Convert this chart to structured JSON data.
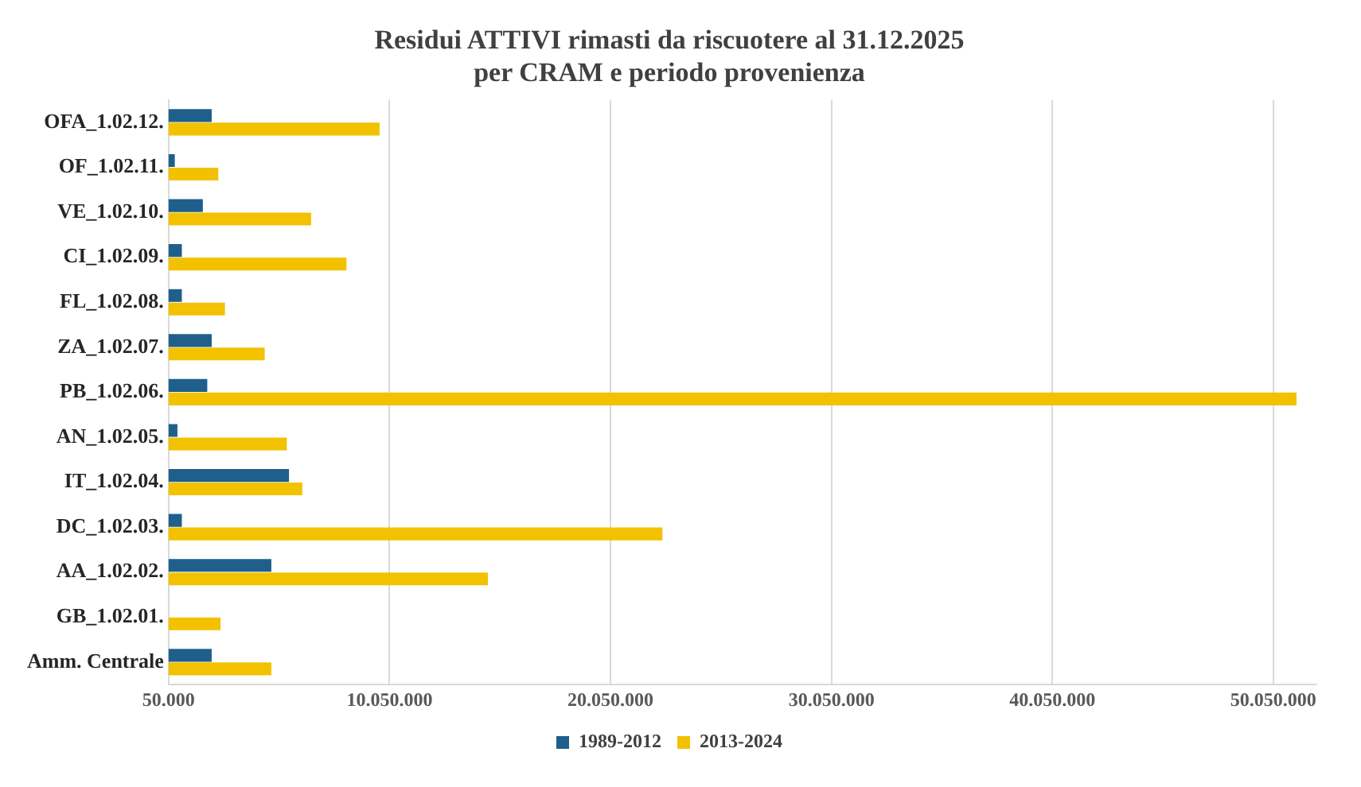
{
  "chart_data": {
    "type": "bar",
    "orientation": "horizontal",
    "title": "Residui ATTIVI rimasti da riscuotere al 31.12.2025\nper CRAM e periodo provenienza",
    "categories": [
      "OFA_1.02.12.",
      "OF_1.02.11.",
      "VE_1.02.10.",
      "CI_1.02.09.",
      "FL_1.02.08.",
      "ZA_1.02.07.",
      "PB_1.02.06.",
      "AN_1.02.05.",
      "IT_1.02.04.",
      "DC_1.02.03.",
      "AA_1.02.02.",
      "GB_1.02.01.",
      "Amm. Centrale"
    ],
    "series": [
      {
        "name": "1989-2012",
        "color": "#1f5f8b",
        "values": [
          2000000,
          330000,
          1600000,
          650000,
          650000,
          2000000,
          1800000,
          450000,
          5500000,
          650000,
          4700000,
          null,
          2000000
        ]
      },
      {
        "name": "2013-2024",
        "color": "#f2c200",
        "values": [
          9600000,
          2300000,
          6500000,
          8100000,
          2600000,
          4400000,
          51100000,
          5400000,
          6100000,
          22400000,
          14500000,
          2400000,
          4700000
        ]
      }
    ],
    "xlim": [
      50000,
      52000000
    ],
    "xticks": [
      {
        "value": 50000,
        "label": "50.000"
      },
      {
        "value": 10050000,
        "label": "10.050.000"
      },
      {
        "value": 20050000,
        "label": "20.050.000"
      },
      {
        "value": 30050000,
        "label": "30.050.000"
      },
      {
        "value": 40050000,
        "label": "40.050.000"
      },
      {
        "value": 50050000,
        "label": "50.050.000"
      }
    ],
    "grid": "x",
    "legend": "bottom"
  }
}
